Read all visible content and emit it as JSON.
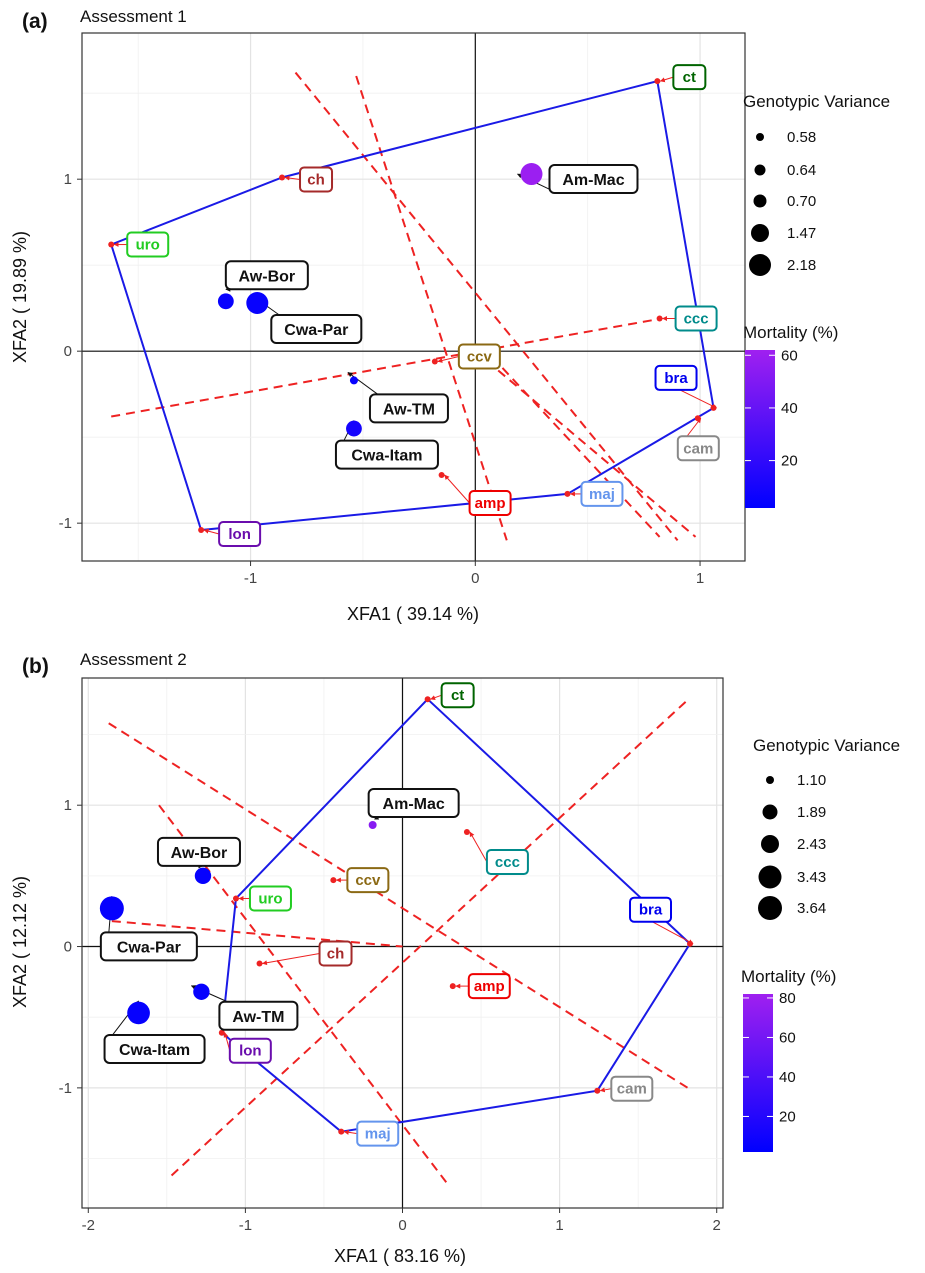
{
  "chart_data": [
    {
      "panel_label": "(a)",
      "title": "Assessment 1",
      "type": "scatter",
      "xlabel": "XFA1 ( 39.14 %)",
      "ylabel": "XFA2 ( 19.89 %)",
      "xlim": [
        -1.75,
        1.2
      ],
      "ylim": [
        -1.22,
        1.85
      ],
      "xticks": [
        -1,
        0,
        1
      ],
      "xtick_labels": [
        "-1",
        "0",
        "1"
      ],
      "yticks": [
        -1,
        0,
        1
      ],
      "ytick_labels": [
        "-1",
        "0",
        "1"
      ],
      "grid": true,
      "genotypes": [
        {
          "name": "Am-Mac",
          "x": 0.25,
          "y": 1.03,
          "variance": 2.18,
          "mortality": 60
        },
        {
          "name": "Aw-Bor",
          "x": -1.11,
          "y": 0.29,
          "variance": 1.47,
          "mortality": 5
        },
        {
          "name": "Cwa-Par",
          "x": -0.97,
          "y": 0.28,
          "variance": 2.18,
          "mortality": 5
        },
        {
          "name": "Aw-TM",
          "x": -0.54,
          "y": -0.17,
          "variance": 0.58,
          "mortality": 5
        },
        {
          "name": "Cwa-Itam",
          "x": -0.54,
          "y": -0.45,
          "variance": 1.47,
          "mortality": 10
        }
      ],
      "environments": [
        {
          "name": "ct",
          "x": 0.81,
          "y": 1.57,
          "color": "#006400"
        },
        {
          "name": "ch",
          "x": -0.86,
          "y": 1.01,
          "color": "#A52A2A"
        },
        {
          "name": "uro",
          "x": -1.62,
          "y": 0.62,
          "color": "#22CC22"
        },
        {
          "name": "ccc",
          "x": 0.82,
          "y": 0.19,
          "color": "#008B8B"
        },
        {
          "name": "ccv",
          "x": -0.18,
          "y": -0.06,
          "color": "#8B6914"
        },
        {
          "name": "bra",
          "x": 1.06,
          "y": -0.33,
          "color": "#0000EE"
        },
        {
          "name": "cam",
          "x": 0.99,
          "y": -0.39,
          "color": "#888888"
        },
        {
          "name": "amp",
          "x": -0.15,
          "y": -0.72,
          "color": "#EE0000"
        },
        {
          "name": "maj",
          "x": 0.41,
          "y": -0.83,
          "color": "#6495ED"
        },
        {
          "name": "lon",
          "x": -1.22,
          "y": -1.04,
          "color": "#6A0DAD"
        }
      ],
      "hull": [
        "ct",
        "bra",
        "maj",
        "lon",
        "uro",
        "ch"
      ],
      "dashed_lines": [
        [
          [
            -1.62,
            -0.38
          ],
          [
            0.83,
            0.19
          ]
        ],
        [
          [
            -0.8,
            1.62
          ],
          [
            0.9,
            -1.1
          ]
        ],
        [
          [
            -0.53,
            1.6
          ],
          [
            0.14,
            -1.1
          ]
        ],
        [
          [
            0.03,
            0.03
          ],
          [
            0.82,
            -1.08
          ]
        ],
        [
          [
            0.0,
            0.0
          ],
          [
            0.98,
            -1.08
          ]
        ]
      ],
      "legend_variance": {
        "title": "Genotypic Variance",
        "values": [
          "0.58",
          "0.64",
          "0.70",
          "1.47",
          "2.18"
        ]
      },
      "legend_mortality": {
        "title": "Mortality (%)",
        "ticks": [
          "60",
          "40",
          "20"
        ],
        "max": 62,
        "min": 2
      },
      "colors": {
        "low": "#0000FF",
        "high": "#A020F0",
        "hull": "#1A1AE6",
        "dashed": "#EE2222"
      }
    },
    {
      "panel_label": "(b)",
      "title": "Assessment 2",
      "type": "scatter",
      "xlabel": "XFA1 ( 83.16 %)",
      "ylabel": "XFA2 ( 12.12 %)",
      "xlim": [
        -2.04,
        2.04
      ],
      "ylim": [
        -1.85,
        1.9
      ],
      "xticks": [
        -2,
        -1,
        0,
        1,
        2
      ],
      "xtick_labels": [
        "-2",
        "-1",
        "0",
        "1",
        "2"
      ],
      "yticks": [
        -1,
        0,
        1
      ],
      "ytick_labels": [
        "-1",
        "0",
        "1"
      ],
      "grid": true,
      "genotypes": [
        {
          "name": "Am-Mac",
          "x": -0.19,
          "y": 0.86,
          "variance": 1.1,
          "mortality": 70
        },
        {
          "name": "Aw-Bor",
          "x": -1.27,
          "y": 0.5,
          "variance": 2.43,
          "mortality": 5
        },
        {
          "name": "Cwa-Par",
          "x": -1.85,
          "y": 0.27,
          "variance": 3.64,
          "mortality": 5
        },
        {
          "name": "Aw-TM",
          "x": -1.28,
          "y": -0.32,
          "variance": 2.43,
          "mortality": 5
        },
        {
          "name": "Cwa-Itam",
          "x": -1.68,
          "y": -0.47,
          "variance": 3.43,
          "mortality": 5
        }
      ],
      "environments": [
        {
          "name": "ct",
          "x": 0.16,
          "y": 1.75,
          "color": "#006400"
        },
        {
          "name": "ccc",
          "x": 0.41,
          "y": 0.81,
          "color": "#008B8B"
        },
        {
          "name": "ccv",
          "x": -0.44,
          "y": 0.47,
          "color": "#8B6914"
        },
        {
          "name": "uro",
          "x": -1.06,
          "y": 0.34,
          "color": "#22CC22"
        },
        {
          "name": "ch",
          "x": -0.91,
          "y": -0.12,
          "color": "#A52A2A"
        },
        {
          "name": "bra",
          "x": 1.83,
          "y": 0.02,
          "color": "#0000EE"
        },
        {
          "name": "amp",
          "x": 0.32,
          "y": -0.28,
          "color": "#EE0000"
        },
        {
          "name": "lon",
          "x": -1.15,
          "y": -0.61,
          "color": "#6A0DAD"
        },
        {
          "name": "cam",
          "x": 1.24,
          "y": -1.02,
          "color": "#888888"
        },
        {
          "name": "maj",
          "x": -0.39,
          "y": -1.31,
          "color": "#6495ED"
        }
      ],
      "hull": [
        "ct",
        "bra",
        "cam",
        "maj",
        "lon",
        "uro"
      ],
      "dashed_lines": [
        [
          [
            -1.85,
            0.18
          ],
          [
            0.0,
            0.0
          ]
        ],
        [
          [
            -1.87,
            1.58
          ],
          [
            1.83,
            -1.01
          ]
        ],
        [
          [
            -1.47,
            -1.62
          ],
          [
            1.83,
            1.76
          ]
        ],
        [
          [
            -1.55,
            1.0
          ],
          [
            0.28,
            -1.67
          ]
        ]
      ],
      "legend_variance": {
        "title": "Genotypic Variance",
        "values": [
          "1.10",
          "1.89",
          "2.43",
          "3.43",
          "3.64"
        ]
      },
      "legend_mortality": {
        "title": "Mortality (%)",
        "ticks": [
          "80",
          "60",
          "40",
          "20"
        ],
        "max": 82,
        "min": 2
      },
      "colors": {
        "low": "#0000FF",
        "high": "#A020F0",
        "hull": "#1A1AE6",
        "dashed": "#EE2222"
      }
    }
  ]
}
